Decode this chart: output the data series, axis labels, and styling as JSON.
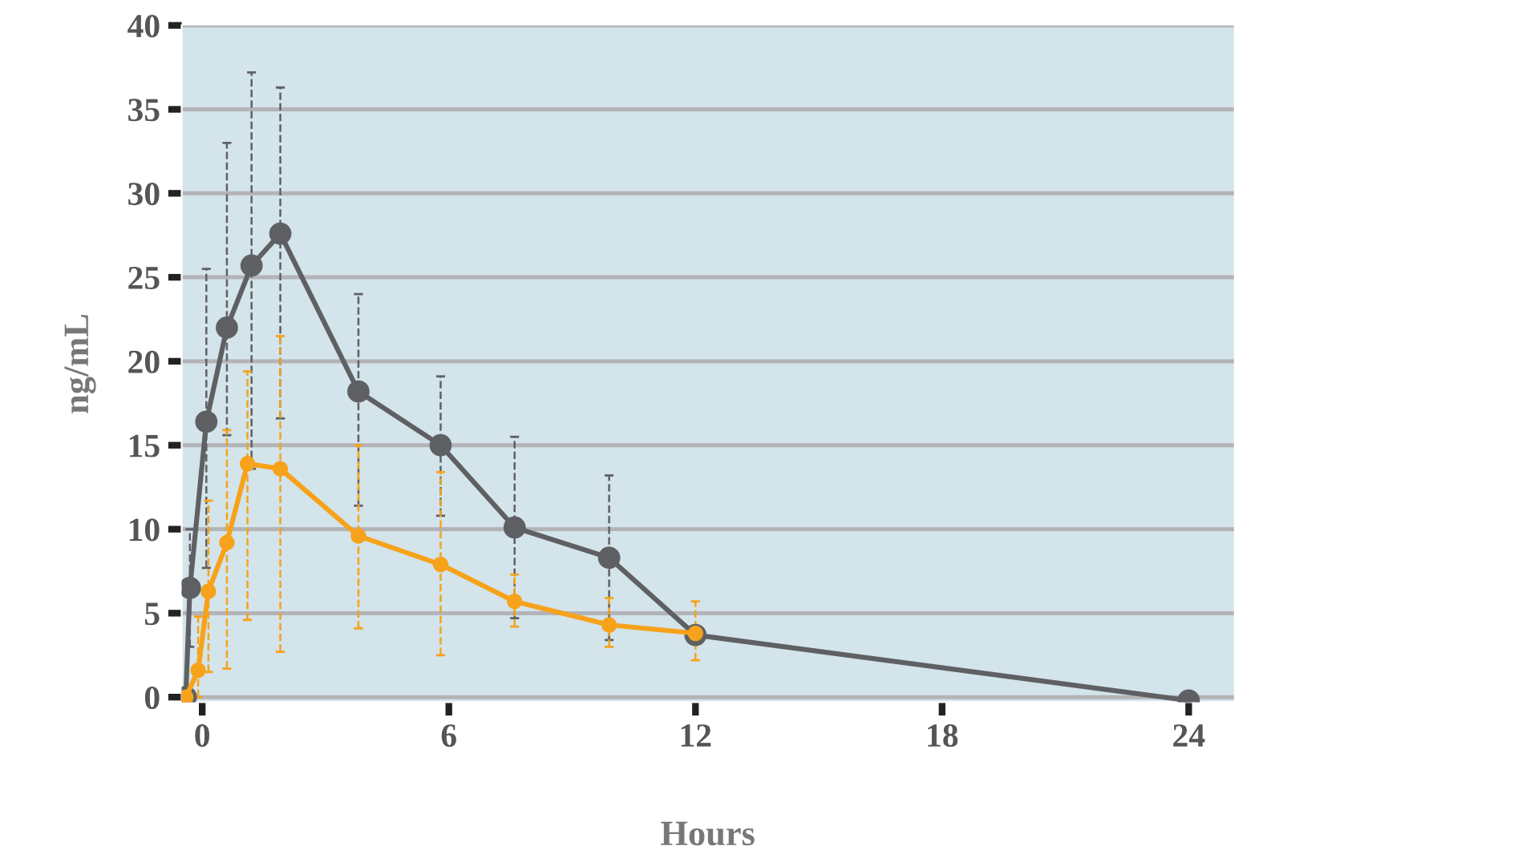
{
  "chart_data": {
    "type": "line",
    "xlabel": "Hours",
    "ylabel": "ng/mL",
    "xlim": [
      -0.5,
      25.1
    ],
    "ylim": [
      -0.3,
      40
    ],
    "xticks": [
      0,
      6,
      12,
      18,
      24
    ],
    "yticks": [
      0,
      5,
      10,
      15,
      20,
      25,
      30,
      35,
      40
    ],
    "grid": "y",
    "marker": "circle",
    "line_style": "solid",
    "series": [
      {
        "color": "#5f6064",
        "x": [
          -0.4,
          -0.3,
          0.1,
          0.6,
          1.2,
          1.9,
          3.8,
          5.8,
          7.6,
          9.9,
          12,
          24
        ],
        "values": [
          0,
          6.5,
          16.4,
          22,
          25.7,
          27.6,
          18.2,
          15.0,
          10.1,
          8.3,
          3.7,
          -0.2
        ],
        "errors": [
          null,
          [
            3,
            10
          ],
          [
            7.7,
            25.5
          ],
          [
            15.6,
            33
          ],
          [
            13.6,
            37.2
          ],
          [
            16.6,
            36.3
          ],
          [
            11.4,
            24
          ],
          [
            10.8,
            19.1
          ],
          [
            4.7,
            15.5
          ],
          [
            3.4,
            13.2
          ],
          null,
          null
        ]
      },
      {
        "color": "#f7a21b",
        "x": [
          -0.4,
          -0.1,
          0.15,
          0.6,
          1.1,
          1.9,
          3.8,
          5.8,
          7.6,
          9.9,
          12
        ],
        "values": [
          0,
          1.6,
          6.3,
          9.2,
          13.9,
          13.6,
          9.6,
          7.9,
          5.7,
          4.3,
          3.8
        ],
        "errors": [
          null,
          [
            0,
            4.8
          ],
          [
            1.5,
            11.7
          ],
          [
            1.7,
            15.9
          ],
          [
            4.6,
            19.4
          ],
          [
            2.7,
            21.5
          ],
          [
            4.1,
            15
          ],
          [
            2.5,
            13.4
          ],
          [
            4.2,
            7.3
          ],
          [
            3.0,
            5.9
          ],
          [
            2.2,
            5.7
          ]
        ]
      }
    ]
  }
}
